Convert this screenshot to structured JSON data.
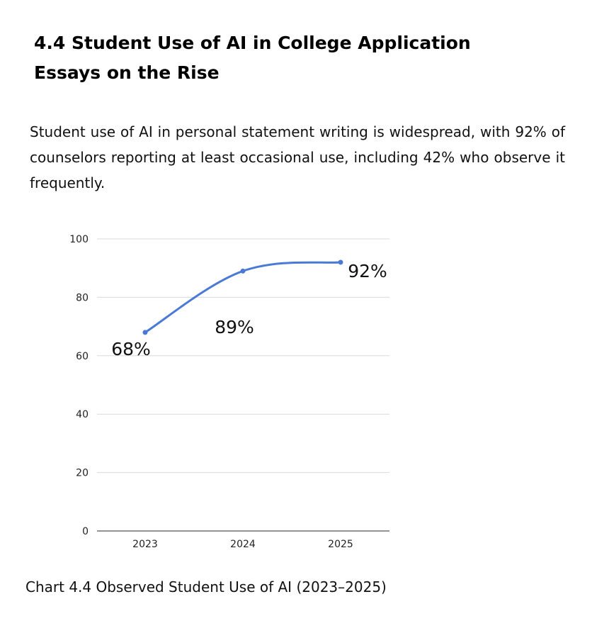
{
  "section": {
    "heading": "4.4 Student Use of AI in College Application Essays on the Rise",
    "paragraph": "Student use of AI in personal statement writing is widespread, with 92% of counselors reporting at least occasional use, including 42% who observe it frequently."
  },
  "chart_data": {
    "type": "line",
    "categories": [
      "2023",
      "2024",
      "2025"
    ],
    "values": [
      68,
      89,
      92
    ],
    "data_labels": [
      "68%",
      "89%",
      "92%"
    ],
    "ylim": [
      0,
      100
    ],
    "yticks": [
      "0",
      "20",
      "40",
      "60",
      "80",
      "100"
    ],
    "grid": true,
    "legend": "none",
    "line_color": "#4a7ad6",
    "grid_color": "#d9d9d9",
    "smooth": true
  },
  "caption": "Chart 4.4 Observed Student Use of AI (2023–2025)"
}
